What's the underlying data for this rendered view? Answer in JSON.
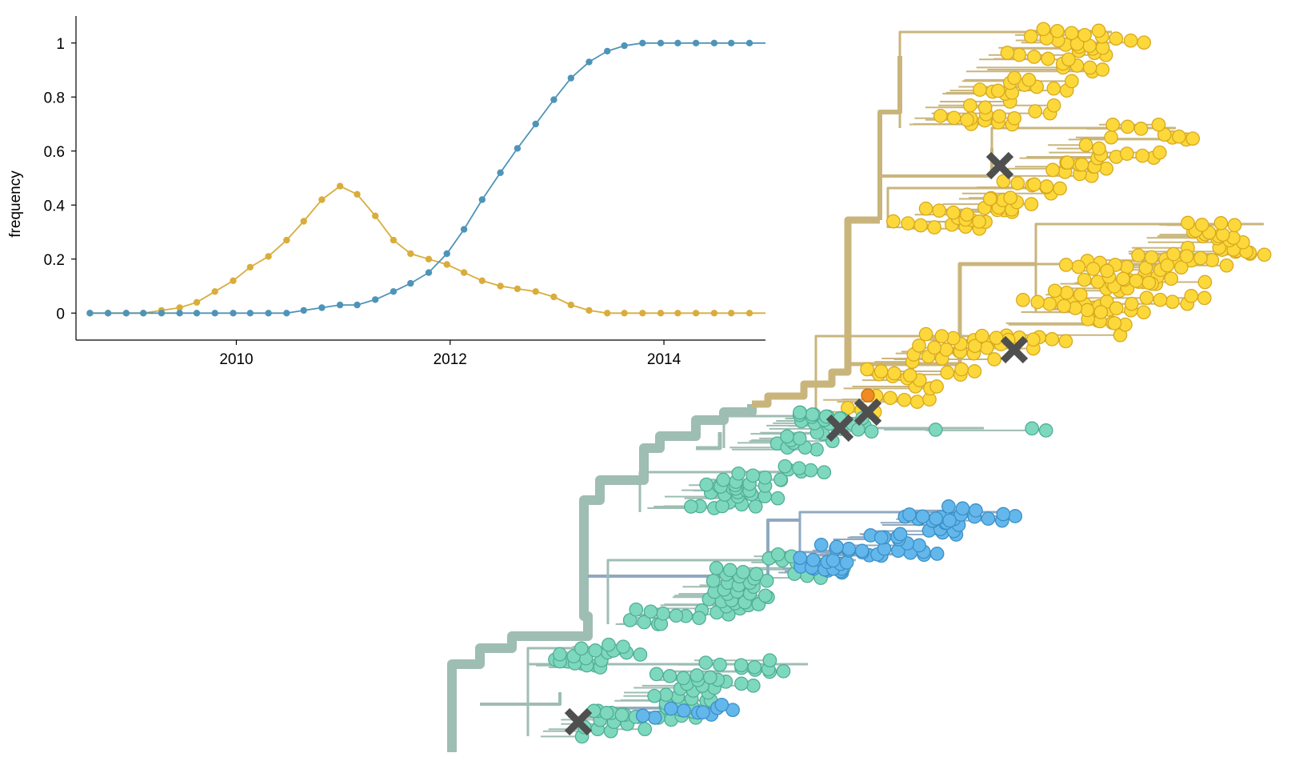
{
  "chart_data": [
    {
      "type": "line",
      "title": "",
      "xlabel": "",
      "ylabel": "frequency",
      "xlim": [
        2008.5,
        2014.95
      ],
      "ylim": [
        -0.1,
        1.1
      ],
      "x_ticks": [
        "2010",
        "2012",
        "2014"
      ],
      "y_ticks": [
        "0",
        "0.2",
        "0.4",
        "0.6",
        "0.8",
        "1"
      ],
      "grid": false,
      "legend": "none",
      "x": [
        2008.63,
        2008.8,
        2008.97,
        2009.13,
        2009.3,
        2009.47,
        2009.63,
        2009.8,
        2009.97,
        2010.13,
        2010.3,
        2010.47,
        2010.63,
        2010.8,
        2010.97,
        2011.13,
        2011.3,
        2011.47,
        2011.63,
        2011.8,
        2011.97,
        2012.13,
        2012.3,
        2012.47,
        2012.63,
        2012.8,
        2012.97,
        2013.13,
        2013.3,
        2013.47,
        2013.63,
        2013.8,
        2013.97,
        2014.13,
        2014.3,
        2014.47,
        2014.63,
        2014.8
      ],
      "series": [
        {
          "color": "#d9ad3c",
          "values": [
            0,
            0,
            0,
            0,
            0.01,
            0.02,
            0.04,
            0.08,
            0.12,
            0.17,
            0.21,
            0.27,
            0.34,
            0.42,
            0.47,
            0.44,
            0.36,
            0.27,
            0.22,
            0.2,
            0.18,
            0.15,
            0.12,
            0.1,
            0.09,
            0.08,
            0.06,
            0.03,
            0.01,
            0,
            0,
            0,
            0,
            0,
            0,
            0,
            0,
            0
          ]
        },
        {
          "color": "#4e94b8",
          "values": [
            0,
            0,
            0,
            0,
            0,
            0,
            0,
            0,
            0,
            0,
            0,
            0,
            0.01,
            0.02,
            0.03,
            0.03,
            0.05,
            0.08,
            0.11,
            0.15,
            0.22,
            0.31,
            0.42,
            0.52,
            0.61,
            0.7,
            0.79,
            0.87,
            0.93,
            0.97,
            0.99,
            1,
            1,
            1,
            1,
            1,
            1,
            1
          ]
        }
      ]
    },
    {
      "type": "tree",
      "clade_colors": {
        "yellow": "#fcd83a",
        "teal": "#7ed8be",
        "blue": "#63b7ea",
        "branch_yellow": "#c9b57c",
        "branch_teal": "#9ebdb3",
        "branch_blue": "#8fa9c0",
        "marker": "#4f4f4f"
      }
    }
  ]
}
